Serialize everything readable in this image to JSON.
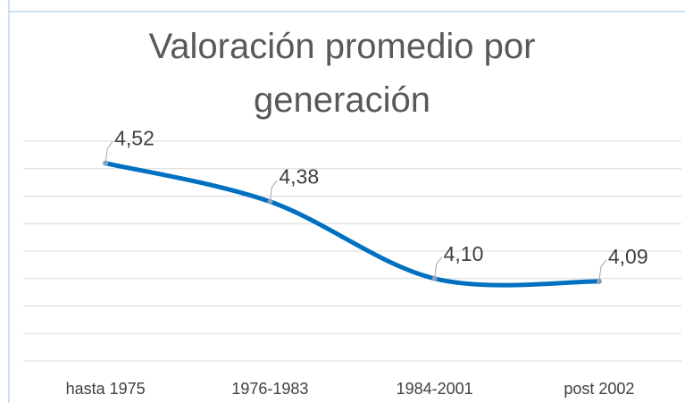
{
  "chart_data": {
    "type": "line",
    "title": "Valoración promedio por generación",
    "categories": [
      "hasta 1975",
      "1976-1983",
      "1984-2001",
      "post 2002"
    ],
    "series": [
      {
        "name": "Valoración promedio",
        "color": "#0070c0",
        "values": [
          4.52,
          4.38,
          4.1,
          4.09
        ],
        "value_labels": [
          "4,52",
          "4,38",
          "4,10",
          "4,09"
        ]
      }
    ],
    "ylim": [
      3.8,
      4.6
    ],
    "yticks": [
      3.8,
      3.9,
      4.0,
      4.1,
      4.2,
      4.3,
      4.4,
      4.5,
      4.6
    ],
    "grid": true,
    "smooth": true
  }
}
